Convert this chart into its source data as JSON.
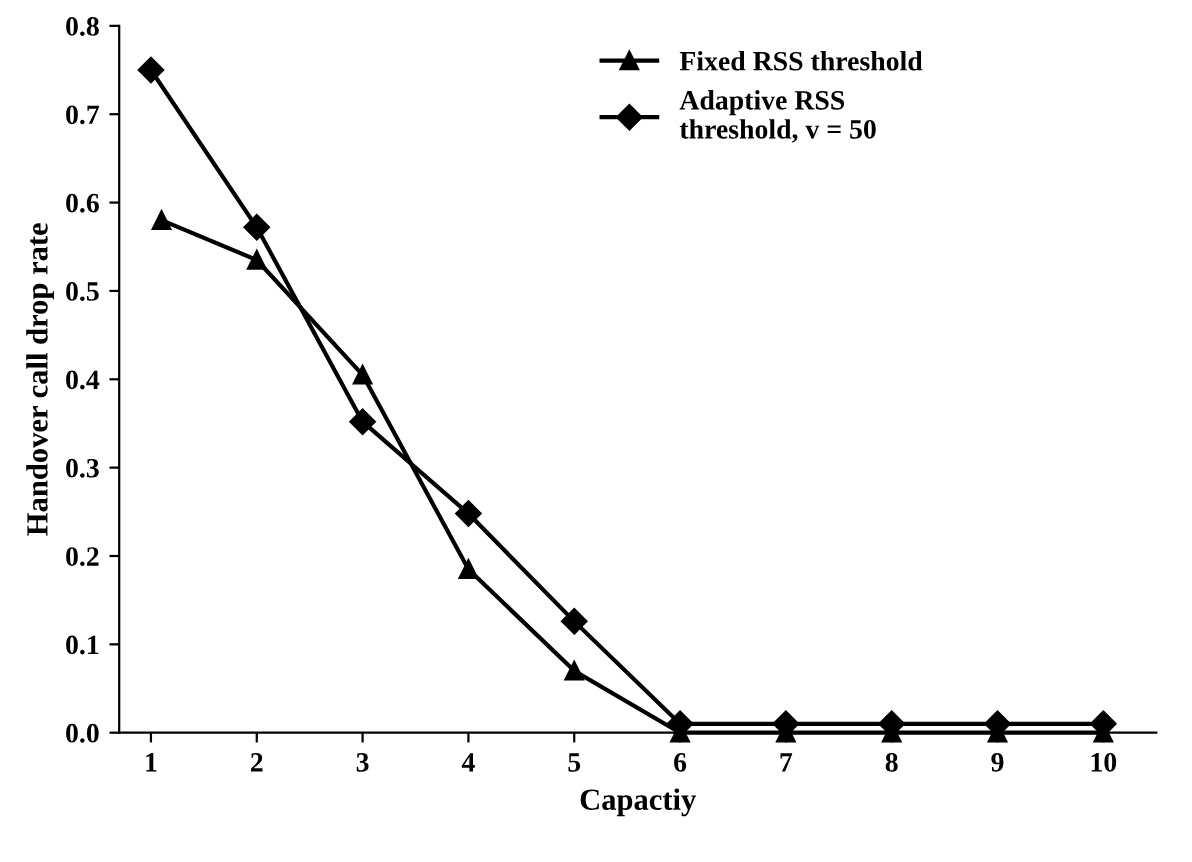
{
  "chart_data": {
    "type": "line",
    "xlabel": "Capactiy",
    "ylabel": "Handover call drop rate",
    "xlim": [
      0.7,
      10.5
    ],
    "xticks": [
      1,
      2,
      3,
      4,
      5,
      6,
      7,
      8,
      9,
      10
    ],
    "ylim": [
      0,
      0.8
    ],
    "yticks": [
      {
        "value": 0,
        "label": "0.0"
      },
      0.1,
      0.2,
      0.3,
      0.4,
      0.5,
      0.6,
      0.7,
      0.8
    ],
    "grid": false,
    "legend": "top right",
    "line_style": "solid",
    "series": [
      {
        "name": "Fixed RSS threshold",
        "color": "#000000",
        "marker": "triangle",
        "x": [
          1.1,
          2,
          3,
          4,
          5,
          6,
          7,
          8,
          9,
          10
        ],
        "values": [
          0.58,
          0.535,
          0.405,
          0.185,
          0.07,
          0.0,
          0.0,
          0.0,
          0.0,
          0.0
        ]
      },
      {
        "name": "Adaptive RSS\nthreshold, v = 50",
        "color": "#000000",
        "marker": "diamond",
        "x": [
          1,
          2,
          3,
          4,
          5,
          6,
          7,
          8,
          9,
          10
        ],
        "values": [
          0.75,
          0.572,
          0.352,
          0.248,
          0.126,
          0.01,
          0.01,
          0.01,
          0.01,
          0.01
        ]
      }
    ]
  }
}
